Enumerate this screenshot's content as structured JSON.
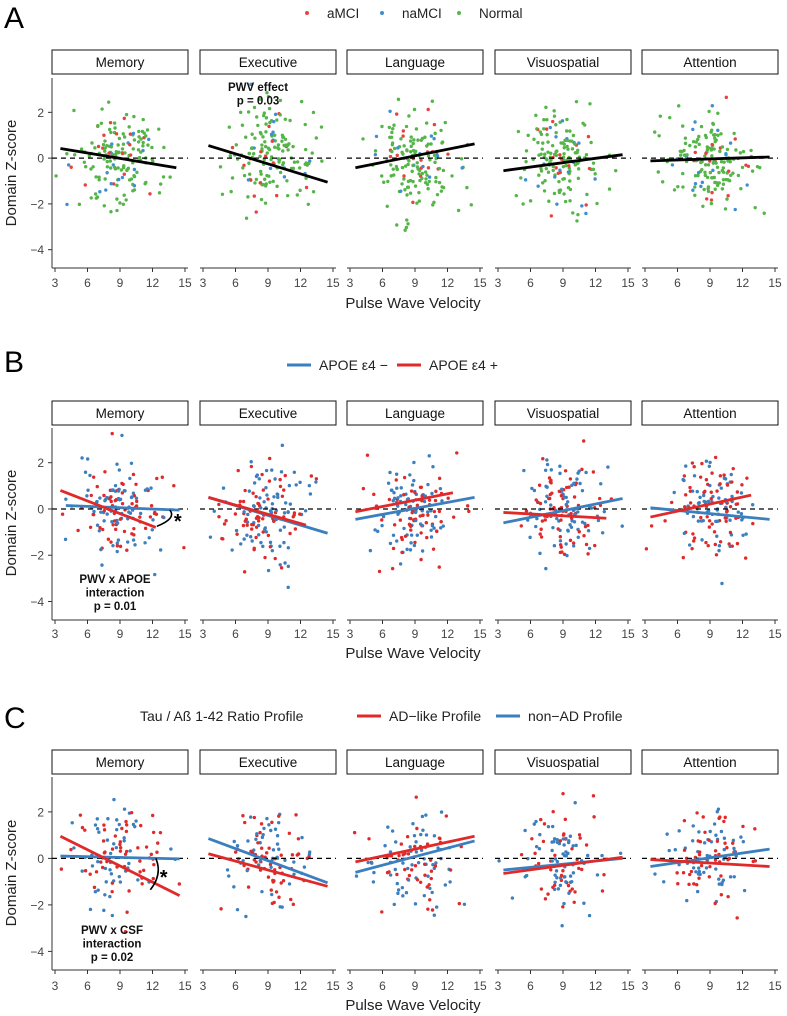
{
  "colors": {
    "aMCI": "#e8423f",
    "naMCI": "#3d8fd1",
    "Normal": "#55b549",
    "apoe_neg": "#3b7fbf",
    "apoe_pos": "#e02a2a",
    "ad_like": "#e02a2a",
    "non_ad": "#3b7fbf",
    "fit_line": "#000000"
  },
  "figure": {
    "x_axis_label": "Pulse Wave Velocity",
    "y_axis_label": "Domain Z-score",
    "domains": [
      "Memory",
      "Executive",
      "Language",
      "Visuospatial",
      "Attention"
    ],
    "x_ticks": [
      "3",
      "6",
      "9",
      "12",
      "15"
    ],
    "y_ticks": [
      "2",
      "0",
      "−2",
      "−4"
    ]
  },
  "chart_data": [
    {
      "panel": "A",
      "type": "scatter",
      "legend_title": "",
      "legend": [
        {
          "label": "aMCI",
          "color_key": "aMCI"
        },
        {
          "label": "naMCI",
          "color_key": "naMCI"
        },
        {
          "label": "Normal",
          "color_key": "Normal"
        }
      ],
      "point_groups": [
        {
          "group": "Normal",
          "share": 0.78
        },
        {
          "group": "aMCI",
          "share": 0.12
        },
        {
          "group": "naMCI",
          "share": 0.1
        }
      ],
      "xlim": [
        3,
        15
      ],
      "ylim": [
        -4.8,
        3.5
      ],
      "reference_y": 0,
      "facets": [
        {
          "domain": "Memory",
          "lines": [
            {
              "key": "fit_line",
              "x": [
                3.5,
                14.2
              ],
              "y": [
                0.42,
                -0.42
              ]
            }
          ]
        },
        {
          "domain": "Executive",
          "lines": [
            {
              "key": "fit_line",
              "x": [
                3.5,
                14.5
              ],
              "y": [
                0.55,
                -1.05
              ]
            }
          ],
          "annotation": [
            "PWV effect",
            "p = 0.03"
          ]
        },
        {
          "domain": "Language",
          "lines": [
            {
              "key": "fit_line",
              "x": [
                3.5,
                14.5
              ],
              "y": [
                -0.42,
                0.62
              ]
            }
          ]
        },
        {
          "domain": "Visuospatial",
          "lines": [
            {
              "key": "fit_line",
              "x": [
                3.5,
                14.5
              ],
              "y": [
                -0.55,
                0.15
              ]
            }
          ]
        },
        {
          "domain": "Attention",
          "lines": [
            {
              "key": "fit_line",
              "x": [
                3.5,
                14.5
              ],
              "y": [
                -0.12,
                0.05
              ]
            }
          ]
        }
      ]
    },
    {
      "panel": "B",
      "type": "scatter",
      "legend_title": "",
      "legend": [
        {
          "label": "APOE ε4 −",
          "color_key": "apoe_neg"
        },
        {
          "label": "APOE ε4 +",
          "color_key": "apoe_pos"
        }
      ],
      "point_groups": [
        {
          "group": "apoe_neg",
          "share": 0.55
        },
        {
          "group": "apoe_pos",
          "share": 0.45
        }
      ],
      "xlim": [
        3,
        15
      ],
      "ylim": [
        -4.8,
        3.5
      ],
      "reference_y": 0,
      "facets": [
        {
          "domain": "Memory",
          "lines": [
            {
              "key": "apoe_neg",
              "x": [
                4,
                14.5
              ],
              "y": [
                0.15,
                -0.05
              ]
            },
            {
              "key": "apoe_pos",
              "x": [
                3.5,
                12.3
              ],
              "y": [
                0.8,
                -0.8
              ]
            }
          ],
          "annotation": [
            "PWV x APOE",
            "interaction",
            "p = 0.01"
          ],
          "star": true
        },
        {
          "domain": "Executive",
          "lines": [
            {
              "key": "apoe_neg",
              "x": [
                3.5,
                14.5
              ],
              "y": [
                0.5,
                -1.05
              ]
            },
            {
              "key": "apoe_pos",
              "x": [
                3.5,
                12.5
              ],
              "y": [
                0.5,
                -0.7
              ]
            }
          ]
        },
        {
          "domain": "Language",
          "lines": [
            {
              "key": "apoe_neg",
              "x": [
                3.5,
                14.5
              ],
              "y": [
                -0.45,
                0.5
              ]
            },
            {
              "key": "apoe_pos",
              "x": [
                3.5,
                12.5
              ],
              "y": [
                -0.12,
                0.7
              ]
            }
          ]
        },
        {
          "domain": "Visuospatial",
          "lines": [
            {
              "key": "apoe_neg",
              "x": [
                3.5,
                14.5
              ],
              "y": [
                -0.6,
                0.45
              ]
            },
            {
              "key": "apoe_pos",
              "x": [
                3.5,
                13
              ],
              "y": [
                -0.15,
                -0.4
              ]
            }
          ]
        },
        {
          "domain": "Attention",
          "lines": [
            {
              "key": "apoe_neg",
              "x": [
                3.5,
                14.5
              ],
              "y": [
                0.05,
                -0.45
              ]
            },
            {
              "key": "apoe_pos",
              "x": [
                3.5,
                12.8
              ],
              "y": [
                -0.35,
                0.6
              ]
            }
          ]
        }
      ]
    },
    {
      "panel": "C",
      "type": "scatter",
      "legend_title": "Tau / Aß 1-42 Ratio Profile",
      "legend": [
        {
          "label": "AD−like Profile",
          "color_key": "ad_like"
        },
        {
          "label": "non−AD Profile",
          "color_key": "non_ad"
        }
      ],
      "point_groups": [
        {
          "group": "non_ad",
          "share": 0.5
        },
        {
          "group": "ad_like",
          "share": 0.5
        }
      ],
      "xlim": [
        3,
        15
      ],
      "ylim": [
        -4.8,
        3.5
      ],
      "reference_y": 0,
      "facets": [
        {
          "domain": "Memory",
          "lines": [
            {
              "key": "non_ad",
              "x": [
                3.5,
                14.5
              ],
              "y": [
                0.1,
                -0.02
              ]
            },
            {
              "key": "ad_like",
              "x": [
                3.5,
                14.5
              ],
              "y": [
                0.95,
                -1.6
              ]
            }
          ],
          "annotation": [
            "PWV x CSF",
            "interaction",
            "p = 0.02"
          ],
          "star": true
        },
        {
          "domain": "Executive",
          "lines": [
            {
              "key": "non_ad",
              "x": [
                3.5,
                14.5
              ],
              "y": [
                0.85,
                -1.05
              ]
            },
            {
              "key": "ad_like",
              "x": [
                3.5,
                14.5
              ],
              "y": [
                0.2,
                -1.2
              ]
            }
          ]
        },
        {
          "domain": "Language",
          "lines": [
            {
              "key": "non_ad",
              "x": [
                3.5,
                14.5
              ],
              "y": [
                -0.6,
                0.75
              ]
            },
            {
              "key": "ad_like",
              "x": [
                3.5,
                14.5
              ],
              "y": [
                -0.15,
                0.95
              ]
            }
          ]
        },
        {
          "domain": "Visuospatial",
          "lines": [
            {
              "key": "non_ad",
              "x": [
                3.5,
                14.5
              ],
              "y": [
                -0.5,
                0.0
              ]
            },
            {
              "key": "ad_like",
              "x": [
                3.5,
                14.5
              ],
              "y": [
                -0.65,
                0.05
              ]
            }
          ]
        },
        {
          "domain": "Attention",
          "lines": [
            {
              "key": "non_ad",
              "x": [
                3.5,
                14.5
              ],
              "y": [
                -0.35,
                0.4
              ]
            },
            {
              "key": "ad_like",
              "x": [
                3.5,
                14.5
              ],
              "y": [
                -0.05,
                -0.35
              ]
            }
          ]
        }
      ]
    }
  ]
}
